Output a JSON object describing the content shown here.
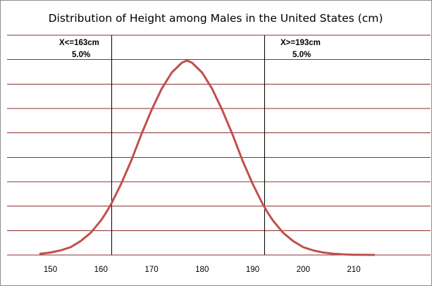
{
  "chart_data": {
    "type": "line",
    "title": "Distribution of Height among Males in the United States (cm)",
    "xlabel": "",
    "ylabel": "",
    "xlim": [
      145,
      215
    ],
    "x_ticks": [
      "150",
      "160",
      "170",
      "180",
      "190",
      "200",
      "210"
    ],
    "y_gridlines": 10,
    "grid": "horizontal",
    "series": [
      {
        "color": "#c0504d",
        "mean": 177,
        "sd": 9.15,
        "x": [
          148,
          150,
          152,
          154,
          156,
          158,
          160,
          161,
          162,
          164,
          166,
          168,
          170,
          172,
          174,
          176,
          177,
          178,
          180,
          182,
          184,
          186,
          188,
          190,
          192,
          193,
          194,
          196,
          198,
          200,
          202,
          204,
          206,
          208,
          210,
          212,
          214
        ],
        "y": [
          0.0066,
          0.0128,
          0.0234,
          0.0402,
          0.0717,
          0.1148,
          0.1779,
          0.2172,
          0.2613,
          0.3661,
          0.486,
          0.6215,
          0.7453,
          0.8544,
          0.9384,
          0.9891,
          1.0,
          0.9891,
          0.9384,
          0.8544,
          0.7453,
          0.6215,
          0.486,
          0.3661,
          0.2613,
          0.2172,
          0.1779,
          0.1148,
          0.0717,
          0.0402,
          0.0234,
          0.0128,
          0.0066,
          0.0032,
          0.0015,
          0.0007,
          0.0003
        ]
      }
    ],
    "annotations": [
      {
        "line": "X<=163cm",
        "label": "5.0%",
        "x": 162.1
      },
      {
        "line": "X>=193cm",
        "label": "5.0%",
        "x": 192.4
      }
    ]
  }
}
